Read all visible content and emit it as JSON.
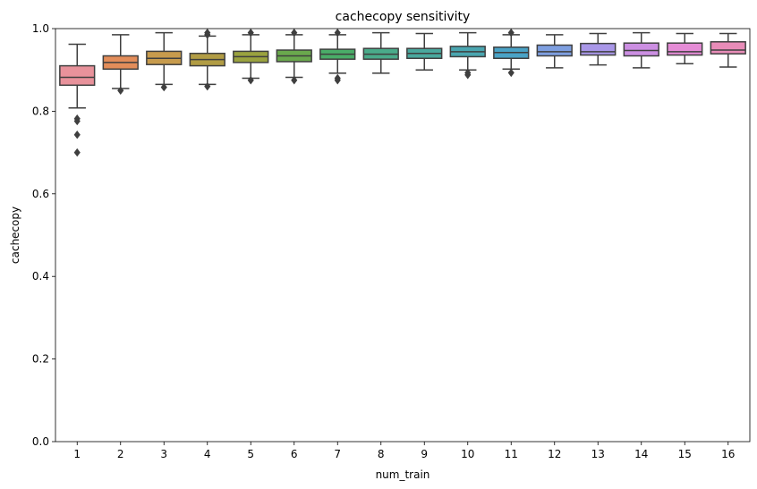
{
  "chart_data": {
    "type": "box",
    "title": "cachecopy sensitivity",
    "xlabel": "num_train",
    "ylabel": "cachecopy",
    "ylim": [
      0.0,
      1.0
    ],
    "yticks": [
      "0.0",
      "0.2",
      "0.4",
      "0.6",
      "0.8",
      "1.0"
    ],
    "grid": false,
    "legend": "none",
    "categories": [
      "1",
      "2",
      "3",
      "4",
      "5",
      "6",
      "7",
      "8",
      "9",
      "10",
      "11",
      "12",
      "13",
      "14",
      "15",
      "16"
    ],
    "boxes": [
      {
        "category": "1",
        "color": "#e8929b",
        "whisker_low": 0.808,
        "q1": 0.863,
        "median": 0.882,
        "q3": 0.91,
        "whisker_high": 0.962,
        "outliers": [
          0.782,
          0.776,
          0.743,
          0.7
        ]
      },
      {
        "category": "2",
        "color": "#e38d5a",
        "whisker_low": 0.855,
        "q1": 0.902,
        "median": 0.918,
        "q3": 0.934,
        "whisker_high": 0.985,
        "outliers": [
          0.85
        ]
      },
      {
        "category": "3",
        "color": "#c79b4d",
        "whisker_low": 0.865,
        "q1": 0.913,
        "median": 0.928,
        "q3": 0.945,
        "whisker_high": 0.99,
        "outliers": [
          0.858
        ]
      },
      {
        "category": "4",
        "color": "#b19c44",
        "whisker_low": 0.865,
        "q1": 0.91,
        "median": 0.925,
        "q3": 0.94,
        "whisker_high": 0.982,
        "outliers": [
          0.86,
          0.985,
          0.99
        ]
      },
      {
        "category": "5",
        "color": "#9aa23f",
        "whisker_low": 0.88,
        "q1": 0.918,
        "median": 0.932,
        "q3": 0.945,
        "whisker_high": 0.985,
        "outliers": [
          0.875,
          0.99
        ]
      },
      {
        "category": "6",
        "color": "#6aa84d",
        "whisker_low": 0.882,
        "q1": 0.92,
        "median": 0.934,
        "q3": 0.948,
        "whisker_high": 0.985,
        "outliers": [
          0.875,
          0.99
        ]
      },
      {
        "category": "7",
        "color": "#4aad68",
        "whisker_low": 0.892,
        "q1": 0.926,
        "median": 0.938,
        "q3": 0.95,
        "whisker_high": 0.985,
        "outliers": [
          0.88,
          0.875,
          0.99
        ]
      },
      {
        "category": "8",
        "color": "#4aab8a",
        "whisker_low": 0.892,
        "q1": 0.926,
        "median": 0.938,
        "q3": 0.952,
        "whisker_high": 0.99,
        "outliers": []
      },
      {
        "category": "9",
        "color": "#4aa89e",
        "whisker_low": 0.9,
        "q1": 0.928,
        "median": 0.94,
        "q3": 0.952,
        "whisker_high": 0.988,
        "outliers": []
      },
      {
        "category": "10",
        "color": "#4aa6b0",
        "whisker_low": 0.9,
        "q1": 0.932,
        "median": 0.944,
        "q3": 0.957,
        "whisker_high": 0.99,
        "outliers": [
          0.893,
          0.888
        ]
      },
      {
        "category": "11",
        "color": "#4aa3c6",
        "whisker_low": 0.902,
        "q1": 0.928,
        "median": 0.942,
        "q3": 0.955,
        "whisker_high": 0.985,
        "outliers": [
          0.893,
          0.99
        ]
      },
      {
        "category": "12",
        "color": "#7e9fe0",
        "whisker_low": 0.905,
        "q1": 0.934,
        "median": 0.944,
        "q3": 0.96,
        "whisker_high": 0.985,
        "outliers": []
      },
      {
        "category": "13",
        "color": "#a997e8",
        "whisker_low": 0.912,
        "q1": 0.936,
        "median": 0.944,
        "q3": 0.964,
        "whisker_high": 0.988,
        "outliers": []
      },
      {
        "category": "14",
        "color": "#cc8fe2",
        "whisker_low": 0.905,
        "q1": 0.934,
        "median": 0.947,
        "q3": 0.965,
        "whisker_high": 0.99,
        "outliers": []
      },
      {
        "category": "15",
        "color": "#e58cd6",
        "whisker_low": 0.915,
        "q1": 0.936,
        "median": 0.944,
        "q3": 0.965,
        "whisker_high": 0.988,
        "outliers": []
      },
      {
        "category": "16",
        "color": "#e88cb8",
        "whisker_low": 0.907,
        "q1": 0.939,
        "median": 0.948,
        "q3": 0.968,
        "whisker_high": 0.988,
        "outliers": []
      }
    ]
  }
}
